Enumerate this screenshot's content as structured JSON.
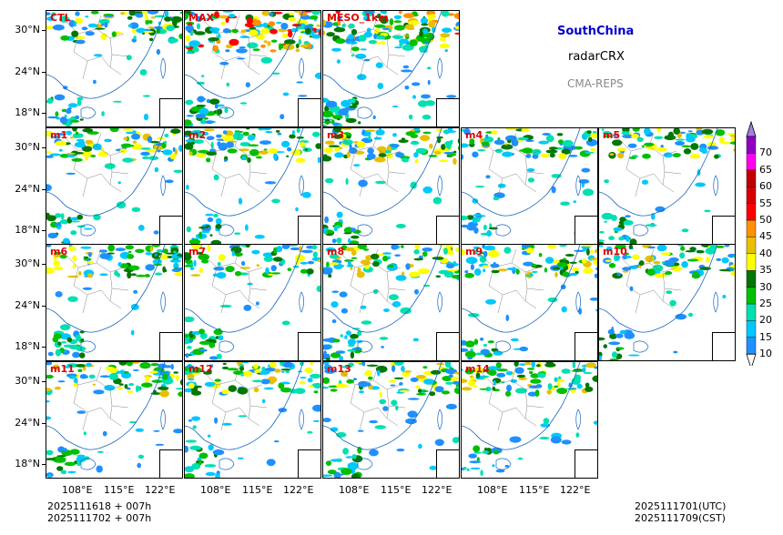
{
  "header": {
    "region": "SouthChina",
    "variable": "radarCRX",
    "model": "CMA-REPS"
  },
  "panels": [
    {
      "label": "CTL",
      "intensity": 0.5
    },
    {
      "label": "MAX",
      "intensity": 1.0
    },
    {
      "label": "MESO_1km",
      "intensity": 0.9
    },
    {
      "label": "m1",
      "intensity": 0.55
    },
    {
      "label": "m2",
      "intensity": 0.55
    },
    {
      "label": "m3",
      "intensity": 0.6
    },
    {
      "label": "m4",
      "intensity": 0.45
    },
    {
      "label": "m5",
      "intensity": 0.45
    },
    {
      "label": "m6",
      "intensity": 0.55
    },
    {
      "label": "m7",
      "intensity": 0.5
    },
    {
      "label": "m8",
      "intensity": 0.6
    },
    {
      "label": "m9",
      "intensity": 0.5
    },
    {
      "label": "m10",
      "intensity": 0.5
    },
    {
      "label": "m11",
      "intensity": 0.55
    },
    {
      "label": "m12",
      "intensity": 0.55
    },
    {
      "label": "m13",
      "intensity": 0.6
    },
    {
      "label": "m14",
      "intensity": 0.55
    }
  ],
  "axes": {
    "lat_labels": [
      "30°N",
      "24°N",
      "18°N"
    ],
    "lon_labels": [
      "108°E",
      "115°E",
      "122°E"
    ]
  },
  "colorbar": {
    "levels": [
      "10",
      "15",
      "20",
      "25",
      "30",
      "35",
      "40",
      "45",
      "50",
      "55",
      "60",
      "65",
      "70"
    ],
    "colors": [
      "#1e90ff",
      "#00c8ff",
      "#00e0b0",
      "#00c000",
      "#007800",
      "#ffff00",
      "#e8c000",
      "#ff9000",
      "#ff0000",
      "#d80000",
      "#c00000",
      "#ff00f0",
      "#9000c0"
    ],
    "over_color": "#a080e0",
    "under_color": "#ffffff"
  },
  "footer": {
    "init_line1": "2025111618  +  007h",
    "init_line2": "2025111702  +  007h",
    "valid_utc": "2025111701(UTC)",
    "valid_cst": "2025111709(CST)"
  }
}
